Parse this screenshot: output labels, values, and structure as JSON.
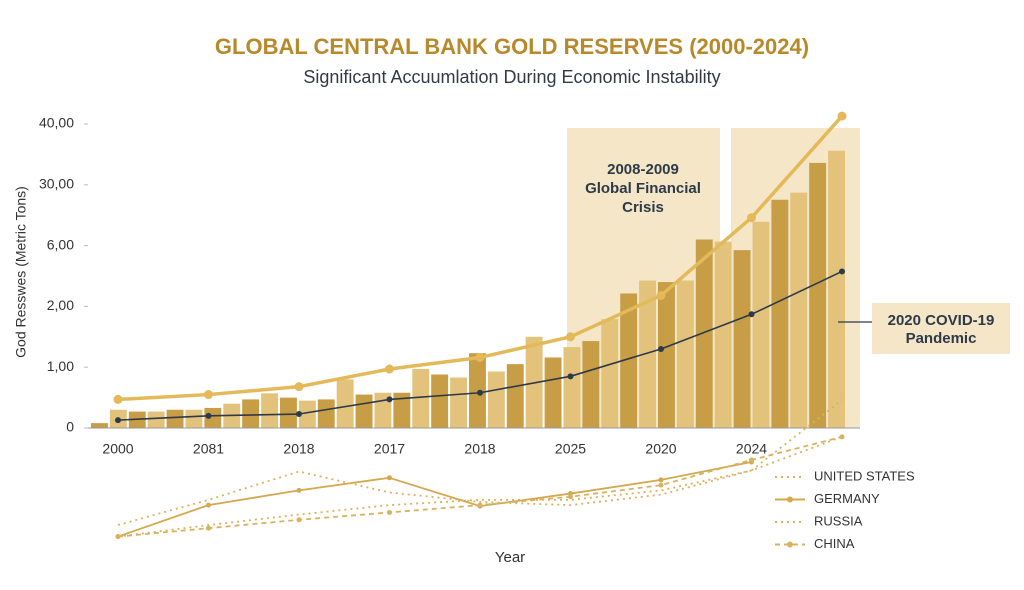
{
  "chart_data": [
    {
      "type": "bar",
      "title": "GLOBAL CENTRAL BANK GOLD RESERVES (2000-2024)",
      "subtitle": "Significant Accuumlation During Economic Instability",
      "y_label": "God Resswes (Metric Tons)",
      "categories": [
        "2000",
        "2081",
        "2018",
        "2017",
        "2018",
        "2025",
        "2020",
        "2024",
        null
      ],
      "ylim": [
        0,
        40
      ],
      "yticks": [
        0,
        {
          "value": 1,
          "label": "1,00"
        },
        {
          "value": 2,
          "label": "2,00"
        },
        {
          "value": 6,
          "label": "6,00"
        },
        {
          "value": 30,
          "label": "30,00"
        },
        {
          "value": 40,
          "label": "40,00"
        }
      ],
      "bar_colors": [
        "#c79d45",
        "#e3c27c"
      ],
      "bars": [
        0.08,
        0.3,
        0.27,
        0.27,
        0.3,
        0.3,
        0.33,
        0.4,
        0.47,
        0.57,
        0.5,
        0.45,
        0.47,
        0.8,
        0.55,
        0.58,
        0.58,
        0.97,
        0.88,
        0.83,
        1.23,
        0.93,
        1.05,
        1.5,
        1.16,
        1.33,
        1.43,
        1.79,
        2.85,
        3.7,
        3.6,
        3.7,
        8.4,
        7.6,
        5.7,
        15.4,
        24.1,
        26.9,
        33.6,
        35.6
      ],
      "series": [
        {
          "color": "#e3b95a",
          "values": [
            0.47,
            0.55,
            0.68,
            0.97,
            1.16,
            1.5,
            2.72,
            17,
            41.3
          ]
        },
        {
          "color": "#2d3a4a",
          "values": [
            0.13,
            0.2,
            0.23,
            0.47,
            0.58,
            0.85,
            1.3,
            1.87,
            4.3
          ]
        }
      ],
      "annotations": [
        {
          "lines": [
            "2008-2009",
            "Global Financial",
            "Crisis"
          ]
        },
        {
          "lines": [
            "2020 COVID-19",
            "Pandemic"
          ]
        }
      ]
    },
    {
      "type": "line",
      "x_label": "Year",
      "ylim": [
        0,
        100
      ],
      "series": [
        {
          "name": "UNITED STATES",
          "color": "#d9b260",
          "style": "dotted",
          "marker": false,
          "values": [
            8,
            19,
            29,
            38,
            43,
            43,
            52,
            71,
            103
          ]
        },
        {
          "name": "GERMANY",
          "color": "#d4a94e",
          "style": "solid",
          "marker": true,
          "values": [
            8,
            38,
            52,
            64,
            37,
            49,
            62,
            79,
            null
          ]
        },
        {
          "name": "RUSSIA",
          "color": "#d9b260",
          "style": "dotted",
          "marker": false,
          "values": [
            19,
            43,
            70,
            50,
            41,
            38,
            48,
            71,
            138
          ]
        },
        {
          "name": "CHINA",
          "color": "#d9b260",
          "style": "dashed",
          "marker": true,
          "values": [
            8,
            16,
            24,
            31,
            38,
            46,
            57,
            81,
            103
          ]
        }
      ]
    }
  ]
}
